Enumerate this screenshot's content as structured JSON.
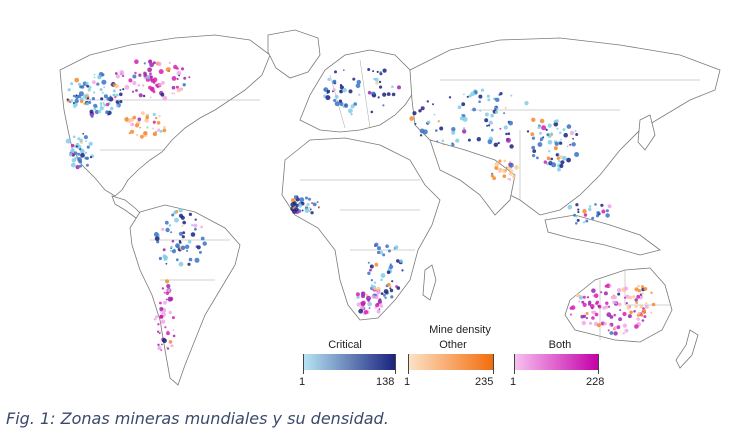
{
  "legend": {
    "title": "Mine density",
    "categories": [
      {
        "label": "Critical",
        "min": "1",
        "max": "138",
        "from": "#b8e6f5",
        "to": "#1a237e"
      },
      {
        "label": "Other",
        "min": "1",
        "max": "235",
        "from": "#fde3c8",
        "to": "#f26d0c"
      },
      {
        "label": "Both",
        "min": "1",
        "max": "228",
        "from": "#f7c3f0",
        "to": "#c400a8"
      }
    ]
  },
  "caption": "Fig. 1: Zonas mineras mundiales y su densidad.",
  "colors": {
    "critical": "#1f3fa0",
    "other": "#f58a2a",
    "both": "#d61fb3",
    "land_outline": "#7a7a7a"
  }
}
